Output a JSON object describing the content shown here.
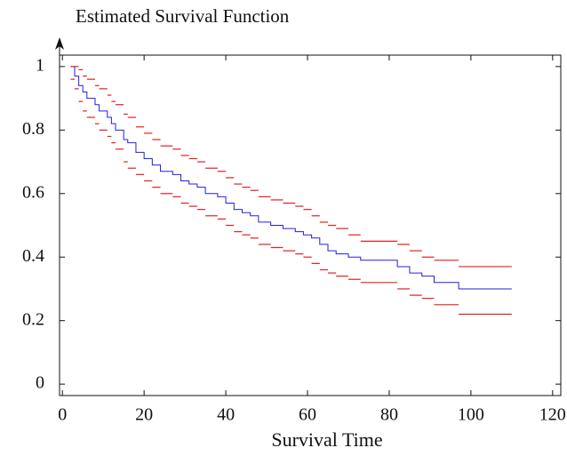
{
  "chart_data": {
    "type": "step",
    "title": "Estimated Survival Function",
    "xlabel": "Survival Time",
    "x": [
      2,
      3,
      4,
      5,
      6,
      8,
      9,
      11,
      12,
      13,
      15,
      16,
      18,
      20,
      22,
      24,
      27,
      29,
      31,
      33,
      35,
      38,
      40,
      42,
      44,
      46,
      48,
      51,
      54,
      57,
      59,
      61,
      63,
      65,
      67,
      70,
      73,
      82,
      85,
      88,
      91,
      97,
      110
    ],
    "series": [
      {
        "color": "#2020e0",
        "values": [
          1.0,
          0.97,
          0.94,
          0.92,
          0.9,
          0.88,
          0.86,
          0.84,
          0.82,
          0.8,
          0.77,
          0.76,
          0.73,
          0.71,
          0.69,
          0.67,
          0.66,
          0.64,
          0.63,
          0.62,
          0.6,
          0.59,
          0.57,
          0.55,
          0.54,
          0.53,
          0.51,
          0.5,
          0.49,
          0.48,
          0.47,
          0.46,
          0.44,
          0.42,
          0.41,
          0.4,
          0.39,
          0.37,
          0.35,
          0.34,
          0.32,
          0.3,
          0.3
        ]
      },
      {
        "color": "#e02020",
        "values": [
          1.0,
          1.0,
          0.99,
          0.97,
          0.96,
          0.94,
          0.93,
          0.91,
          0.89,
          0.88,
          0.85,
          0.84,
          0.81,
          0.79,
          0.77,
          0.75,
          0.74,
          0.72,
          0.71,
          0.7,
          0.68,
          0.67,
          0.65,
          0.63,
          0.62,
          0.61,
          0.59,
          0.58,
          0.57,
          0.56,
          0.55,
          0.53,
          0.51,
          0.5,
          0.49,
          0.47,
          0.45,
          0.44,
          0.42,
          0.4,
          0.39,
          0.37,
          0.37
        ]
      },
      {
        "color": "#e02020",
        "values": [
          0.96,
          0.93,
          0.89,
          0.86,
          0.84,
          0.82,
          0.8,
          0.78,
          0.76,
          0.74,
          0.7,
          0.68,
          0.66,
          0.64,
          0.62,
          0.6,
          0.59,
          0.57,
          0.56,
          0.55,
          0.53,
          0.52,
          0.5,
          0.48,
          0.47,
          0.46,
          0.44,
          0.43,
          0.42,
          0.41,
          0.4,
          0.38,
          0.36,
          0.35,
          0.34,
          0.33,
          0.32,
          0.3,
          0.28,
          0.27,
          0.25,
          0.22,
          0.22
        ]
      }
    ],
    "xlim": [
      -0.7,
      122
    ],
    "ylim": [
      -0.036,
      1.036
    ],
    "xticks": [
      0,
      20,
      40,
      60,
      80,
      100,
      120
    ],
    "yticks": [
      0,
      0.2,
      0.4,
      0.6,
      0.8,
      1
    ]
  }
}
